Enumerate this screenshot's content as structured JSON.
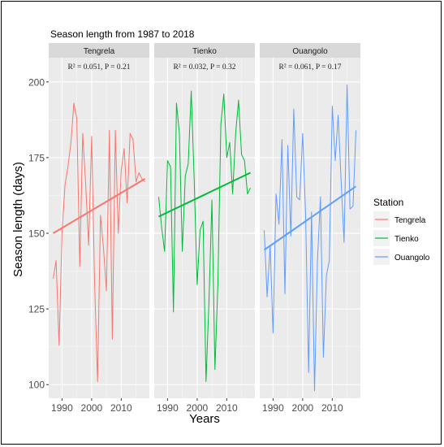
{
  "chart_data": {
    "type": "line",
    "title": "Season length from 1987 to 2018",
    "xlabel": "Years",
    "ylabel": "Season length (days)",
    "ylim": [
      95.5,
      208
    ],
    "yticks": [
      100,
      125,
      150,
      175,
      200
    ],
    "xlim": [
      1985.5,
      2019.5
    ],
    "xticks": [
      1990,
      2000,
      2010
    ],
    "grid": true,
    "legend": {
      "title": "Station",
      "position": "right"
    },
    "panels": [
      {
        "name": "Tengrela",
        "color": "#F8766D",
        "stats": "R² = 0.051, P = 0.21",
        "x": [
          1987,
          1988,
          1989,
          1990,
          1991,
          1992,
          1993,
          1994,
          1995,
          1996,
          1997,
          1998,
          1999,
          2000,
          2001,
          2002,
          2003,
          2004,
          2005,
          2006,
          2007,
          2008,
          2009,
          2010,
          2011,
          2012,
          2013,
          2014,
          2015,
          2016,
          2017,
          2018
        ],
        "values": [
          135,
          141,
          113,
          150,
          166,
          172,
          180,
          193,
          188,
          139,
          183,
          166,
          146,
          182,
          134,
          101,
          156,
          145,
          131,
          184,
          115,
          184,
          150,
          171,
          178,
          160,
          183,
          181,
          167,
          170,
          168,
          167
        ],
        "trend": [
          150,
          168
        ]
      },
      {
        "name": "Tienko",
        "color": "#00BA38",
        "stats": "R² = 0.032, P = 0.32",
        "x": [
          1987,
          1988,
          1989,
          1990,
          1991,
          1992,
          1993,
          1994,
          1995,
          1996,
          1997,
          1998,
          1999,
          2000,
          2001,
          2002,
          2003,
          2004,
          2005,
          2006,
          2007,
          2008,
          2009,
          2010,
          2011,
          2012,
          2013,
          2014,
          2015,
          2016,
          2017,
          2018
        ],
        "values": [
          162,
          152,
          144,
          174,
          172,
          124,
          193,
          183,
          144,
          169,
          173,
          197,
          168,
          133,
          151,
          154,
          101,
          128,
          161,
          105,
          133,
          186,
          196,
          175,
          180,
          163,
          183,
          194,
          176,
          174,
          163,
          165
        ],
        "trend": [
          155.5,
          170
        ]
      },
      {
        "name": "Ouangolo",
        "color": "#619CFF",
        "stats": "R² = 0.061, P = 0.17",
        "x": [
          1987,
          1988,
          1989,
          1990,
          1991,
          1992,
          1993,
          1994,
          1995,
          1996,
          1997,
          1998,
          1999,
          2000,
          2001,
          2002,
          2003,
          2004,
          2005,
          2006,
          2007,
          2008,
          2009,
          2010,
          2011,
          2012,
          2013,
          2014,
          2015,
          2016,
          2017,
          2018
        ],
        "values": [
          151,
          129,
          146,
          117,
          163,
          153,
          181,
          130,
          179,
          149,
          191,
          162,
          161,
          183,
          156,
          104,
          157,
          98,
          141,
          162,
          109,
          136,
          141,
          192,
          174,
          189,
          167,
          147,
          199,
          158,
          159,
          184
        ],
        "trend": [
          144.5,
          165.5
        ]
      }
    ]
  }
}
